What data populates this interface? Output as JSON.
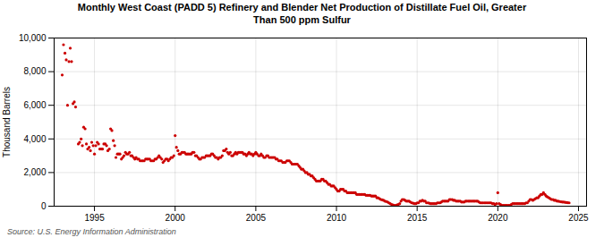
{
  "chart_data": {
    "type": "scatter",
    "title": "Monthly West Coast (PADD 5) Refinery and Blender Net Production of Distillate Fuel Oil, Greater\nThan 500 ppm Sulfur",
    "ylabel": "Thousand Barrels",
    "source": "Source: U.S. Energy Information Administration",
    "color": "#cc0000",
    "grid": true,
    "xlim": [
      1992.5,
      2025.5
    ],
    "xticks": [
      1995,
      2000,
      2005,
      2010,
      2015,
      2020,
      2025
    ],
    "ylim": [
      0,
      10000
    ],
    "yticks": [
      0,
      {
        "value": 2000,
        "label": "2,000"
      },
      {
        "value": 4000,
        "label": "4,000"
      },
      {
        "value": 6000,
        "label": "6,000"
      },
      {
        "value": 8000,
        "label": "8,000"
      },
      {
        "value": 10000,
        "label": "10,000"
      }
    ],
    "x": [
      1993.0,
      1993.08,
      1993.17,
      1993.25,
      1993.33,
      1993.42,
      1993.5,
      1993.58,
      1993.67,
      1993.75,
      1993.83,
      1994.0,
      1994.08,
      1994.17,
      1994.25,
      1994.33,
      1994.42,
      1994.5,
      1994.58,
      1994.67,
      1994.75,
      1994.83,
      1994.92,
      1995.0,
      1995.08,
      1995.17,
      1995.25,
      1995.33,
      1995.42,
      1995.5,
      1995.58,
      1995.67,
      1995.75,
      1995.83,
      1995.92,
      1996.0,
      1996.08,
      1996.17,
      1996.25,
      1996.33,
      1996.42,
      1996.5,
      1996.58,
      1996.67,
      1996.75,
      1996.83,
      1996.92,
      1997.0,
      1997.08,
      1997.17,
      1997.25,
      1997.33,
      1997.42,
      1997.5,
      1997.58,
      1997.67,
      1997.75,
      1997.83,
      1997.92,
      1998.0,
      1998.08,
      1998.17,
      1998.25,
      1998.33,
      1998.42,
      1998.5,
      1998.58,
      1998.67,
      1998.75,
      1998.83,
      1998.92,
      1999.0,
      1999.08,
      1999.17,
      1999.25,
      1999.33,
      1999.42,
      1999.5,
      1999.58,
      1999.67,
      1999.75,
      1999.83,
      1999.92,
      2000.0,
      2000.08,
      2000.17,
      2000.25,
      2000.33,
      2000.42,
      2000.5,
      2000.58,
      2000.67,
      2000.75,
      2000.83,
      2000.92,
      2001.0,
      2001.08,
      2001.17,
      2001.25,
      2001.33,
      2001.42,
      2001.5,
      2001.58,
      2001.67,
      2001.75,
      2001.83,
      2001.92,
      2002.0,
      2002.08,
      2002.17,
      2002.25,
      2002.33,
      2002.42,
      2002.5,
      2002.58,
      2002.67,
      2002.75,
      2002.83,
      2002.92,
      2003.0,
      2003.08,
      2003.17,
      2003.25,
      2003.33,
      2003.42,
      2003.5,
      2003.58,
      2003.67,
      2003.75,
      2003.83,
      2003.92,
      2004.0,
      2004.08,
      2004.17,
      2004.25,
      2004.33,
      2004.42,
      2004.5,
      2004.58,
      2004.67,
      2004.75,
      2004.83,
      2004.92,
      2005.0,
      2005.08,
      2005.17,
      2005.25,
      2005.33,
      2005.42,
      2005.5,
      2005.58,
      2005.67,
      2005.75,
      2005.83,
      2005.92,
      2006.0,
      2006.08,
      2006.17,
      2006.25,
      2006.33,
      2006.42,
      2006.5,
      2006.58,
      2006.67,
      2006.75,
      2006.83,
      2006.92,
      2007.0,
      2007.08,
      2007.17,
      2007.25,
      2007.33,
      2007.42,
      2007.5,
      2007.58,
      2007.67,
      2007.75,
      2007.83,
      2007.92,
      2008.0,
      2008.08,
      2008.17,
      2008.25,
      2008.33,
      2008.42,
      2008.5,
      2008.58,
      2008.67,
      2008.75,
      2008.83,
      2008.92,
      2009.0,
      2009.08,
      2009.17,
      2009.25,
      2009.33,
      2009.42,
      2009.5,
      2009.58,
      2009.67,
      2009.75,
      2009.83,
      2009.92,
      2010.0,
      2010.08,
      2010.17,
      2010.25,
      2010.33,
      2010.42,
      2010.5,
      2010.58,
      2010.67,
      2010.75,
      2010.83,
      2010.92,
      2011.0,
      2011.08,
      2011.17,
      2011.25,
      2011.33,
      2011.42,
      2011.5,
      2011.58,
      2011.67,
      2011.75,
      2011.83,
      2011.92,
      2012.0,
      2012.08,
      2012.17,
      2012.25,
      2012.33,
      2012.42,
      2012.5,
      2012.58,
      2012.67,
      2012.75,
      2012.83,
      2012.92,
      2013.0,
      2013.08,
      2013.17,
      2013.25,
      2013.33,
      2013.42,
      2013.5,
      2013.58,
      2013.67,
      2013.75,
      2013.83,
      2013.92,
      2014.0,
      2014.08,
      2014.17,
      2014.25,
      2014.33,
      2014.42,
      2014.5,
      2014.58,
      2014.67,
      2014.75,
      2014.83,
      2014.92,
      2015.0,
      2015.08,
      2015.17,
      2015.25,
      2015.33,
      2015.42,
      2015.5,
      2015.58,
      2015.67,
      2015.75,
      2015.83,
      2015.92,
      2016.0,
      2016.08,
      2016.17,
      2016.25,
      2016.33,
      2016.42,
      2016.5,
      2016.58,
      2016.67,
      2016.75,
      2016.83,
      2016.92,
      2017.0,
      2017.08,
      2017.17,
      2017.25,
      2017.33,
      2017.42,
      2017.5,
      2017.58,
      2017.67,
      2017.75,
      2017.83,
      2017.92,
      2018.0,
      2018.08,
      2018.17,
      2018.25,
      2018.33,
      2018.42,
      2018.5,
      2018.58,
      2018.67,
      2018.75,
      2018.83,
      2018.92,
      2019.0,
      2019.08,
      2019.17,
      2019.25,
      2019.33,
      2019.42,
      2019.5,
      2019.58,
      2019.67,
      2019.75,
      2019.83,
      2019.92,
      2020.0,
      2020.08,
      2020.17,
      2020.25,
      2020.33,
      2020.42,
      2020.5,
      2020.58,
      2020.67,
      2020.75,
      2020.83,
      2020.92,
      2021.0,
      2021.08,
      2021.17,
      2021.25,
      2021.33,
      2021.42,
      2021.5,
      2021.58,
      2021.67,
      2021.75,
      2021.83,
      2021.92,
      2022.0,
      2022.08,
      2022.17,
      2022.25,
      2022.33,
      2022.42,
      2022.5,
      2022.58,
      2022.67,
      2022.75,
      2022.83,
      2022.92,
      2023.0,
      2023.08,
      2023.17,
      2023.25,
      2023.33,
      2023.42,
      2023.5,
      2023.58,
      2023.67,
      2023.75,
      2023.83,
      2023.92,
      2024.0,
      2024.08,
      2024.17,
      2024.25,
      2024.33,
      2024.42
    ],
    "values": [
      7800,
      9600,
      9100,
      8700,
      6000,
      8600,
      9400,
      8600,
      6100,
      6200,
      5900,
      3700,
      3800,
      4000,
      3600,
      4700,
      4600,
      3700,
      3400,
      3500,
      3300,
      3800,
      3600,
      3100,
      3600,
      3800,
      3700,
      3400,
      3400,
      3400,
      3700,
      3700,
      3600,
      3300,
      3400,
      4600,
      4500,
      3900,
      3600,
      2900,
      3100,
      3100,
      3100,
      2800,
      2900,
      3000,
      3200,
      3100,
      3100,
      3200,
      3000,
      3000,
      2900,
      2800,
      2900,
      2800,
      2800,
      2700,
      2700,
      2700,
      2700,
      2800,
      2800,
      2800,
      2800,
      2700,
      2700,
      2700,
      2800,
      2800,
      2900,
      3000,
      2900,
      2800,
      2600,
      2700,
      2800,
      2800,
      2700,
      2800,
      2900,
      2900,
      3000,
      4200,
      3500,
      3300,
      3100,
      3100,
      3200,
      3200,
      3200,
      3100,
      3100,
      3100,
      3100,
      3100,
      3200,
      3200,
      3000,
      3000,
      2900,
      2800,
      2800,
      2900,
      2900,
      2900,
      3000,
      3000,
      3000,
      3000,
      3100,
      3100,
      3000,
      2900,
      2900,
      2800,
      2900,
      2900,
      3000,
      3300,
      3300,
      3400,
      3200,
      3100,
      3200,
      3000,
      3000,
      3100,
      3200,
      3100,
      3200,
      3200,
      3200,
      3200,
      3100,
      3100,
      3000,
      3100,
      3200,
      3100,
      3100,
      3000,
      3100,
      3200,
      3100,
      3000,
      3000,
      3100,
      3000,
      2900,
      2900,
      3000,
      3000,
      2900,
      2900,
      2900,
      2900,
      2900,
      2800,
      2800,
      2700,
      2700,
      2700,
      2600,
      2600,
      2600,
      2700,
      2700,
      2700,
      2600,
      2500,
      2500,
      2500,
      2500,
      2500,
      2400,
      2300,
      2200,
      2200,
      2100,
      2000,
      2000,
      1900,
      1900,
      1800,
      1800,
      1700,
      1600,
      1500,
      1500,
      1500,
      1500,
      1600,
      1600,
      1500,
      1500,
      1400,
      1300,
      1300,
      1200,
      1200,
      1200,
      1100,
      1000,
      900,
      900,
      1000,
      1000,
      1000,
      900,
      900,
      800,
      800,
      800,
      800,
      800,
      800,
      800,
      700,
      700,
      700,
      700,
      700,
      700,
      700,
      650,
      650,
      650,
      650,
      600,
      600,
      600,
      600,
      500,
      500,
      450,
      400,
      380,
      350,
      300,
      280,
      250,
      200,
      150,
      100,
      80,
      50,
      50,
      80,
      100,
      150,
      300,
      400,
      400,
      350,
      300,
      300,
      300,
      250,
      200,
      180,
      150,
      150,
      200,
      200,
      300,
      300,
      350,
      300,
      300,
      200,
      200,
      180,
      150,
      150,
      150,
      150,
      150,
      200,
      200,
      200,
      250,
      300,
      300,
      300,
      300,
      300,
      400,
      400,
      400,
      350,
      350,
      300,
      300,
      300,
      300,
      250,
      250,
      250,
      300,
      300,
      300,
      300,
      300,
      300,
      300,
      300,
      300,
      300,
      250,
      200,
      200,
      200,
      200,
      200,
      200,
      200,
      200,
      200,
      150,
      150,
      100,
      150,
      800,
      150,
      100,
      50,
      50,
      50,
      50,
      50,
      50,
      50,
      100,
      150,
      150,
      150,
      150,
      150,
      150,
      150,
      150,
      150,
      150,
      200,
      200,
      300,
      400,
      400,
      350,
      400,
      450,
      500,
      500,
      600,
      700,
      700,
      800,
      700,
      600,
      550,
      500,
      450,
      400,
      400,
      350,
      350,
      300,
      300,
      280,
      260,
      250,
      250,
      230,
      220,
      210,
      200
    ]
  }
}
